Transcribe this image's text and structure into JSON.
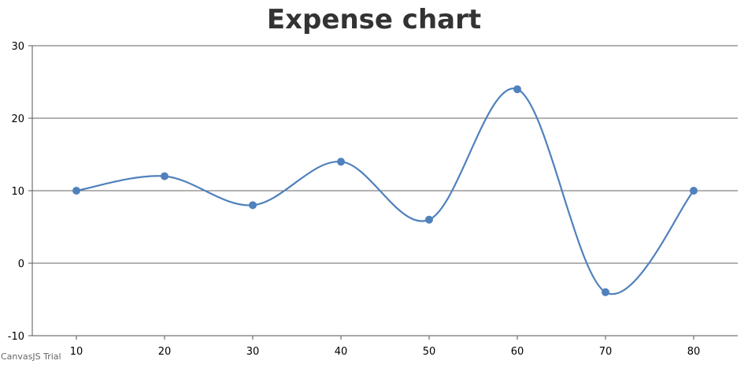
{
  "chart_data": {
    "type": "line",
    "smooth": true,
    "title": "Expense chart",
    "x": [
      10,
      20,
      30,
      40,
      50,
      60,
      70,
      80
    ],
    "series": [
      {
        "values": [
          10,
          12,
          8,
          14,
          6,
          24,
          -4,
          10
        ],
        "color": "#4f81bc"
      }
    ],
    "xticks": [
      "10",
      "20",
      "30",
      "40",
      "50",
      "60",
      "70",
      "80"
    ],
    "yticks": [
      "-10",
      "0",
      "10",
      "20",
      "30"
    ],
    "ylim": [
      -10,
      30
    ],
    "grid": true,
    "legend": "none"
  },
  "credit": "CanvasJS Trial"
}
